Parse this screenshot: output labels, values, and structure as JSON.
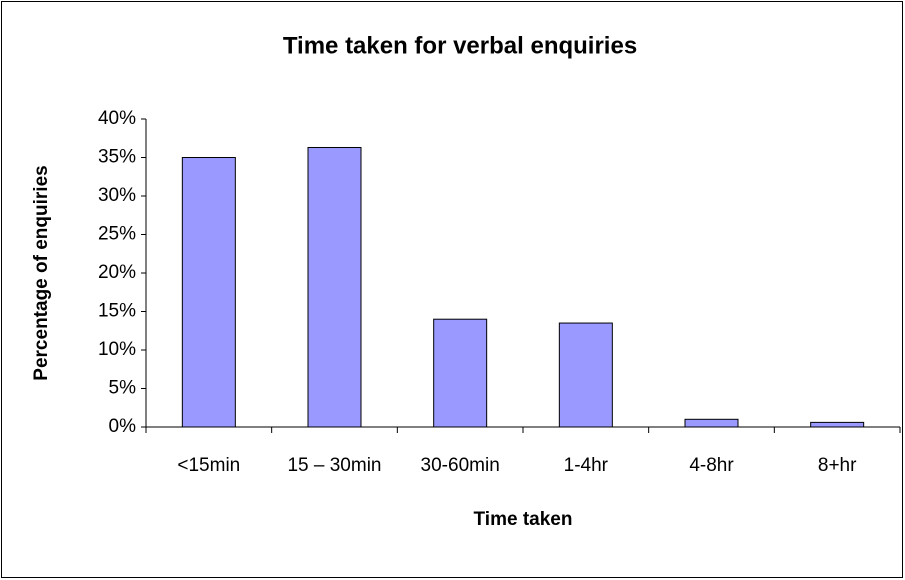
{
  "chart_data": {
    "type": "bar",
    "title": "Time taken for verbal enquiries",
    "x_label": "Time taken",
    "y_label": "Percentage of enquiries",
    "categories": [
      "<15min",
      "15 – 30min",
      "30-60min",
      "1-4hr",
      "4-8hr",
      "8+hr"
    ],
    "values": [
      35,
      36.3,
      14,
      13.5,
      1,
      0.6
    ],
    "color": "#9999ff",
    "ylim": [
      0,
      40
    ],
    "yticks": [
      {
        "value": 0,
        "label": "0%"
      },
      {
        "value": 5,
        "label": "5%"
      },
      {
        "value": 10,
        "label": "10%"
      },
      {
        "value": 15,
        "label": "15%"
      },
      {
        "value": 20,
        "label": "20%"
      },
      {
        "value": 25,
        "label": "25%"
      },
      {
        "value": 30,
        "label": "30%"
      },
      {
        "value": 35,
        "label": "35%"
      },
      {
        "value": 40,
        "label": "40%"
      }
    ],
    "grid": false
  }
}
